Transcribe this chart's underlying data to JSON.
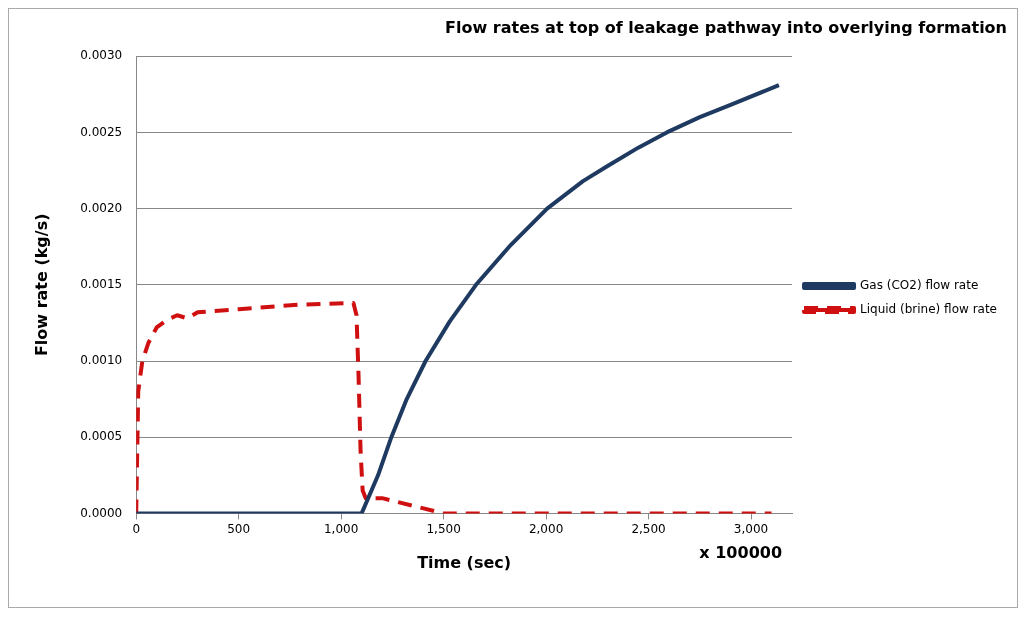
{
  "chart_data": {
    "type": "line",
    "title": "Flow rates at top of leakage pathway into overlying formation",
    "xlabel": "Time (sec)",
    "ylabel": "Flow rate (kg/s)",
    "annotations": [
      "x 100000"
    ],
    "xlim": [
      0,
      3200
    ],
    "xticks": [
      {
        "value": 0,
        "label": "0"
      },
      {
        "value": 500,
        "label": "500"
      },
      {
        "value": 1000,
        "label": "1,000"
      },
      {
        "value": 1500,
        "label": "1,500"
      },
      {
        "value": 2000,
        "label": "2,000"
      },
      {
        "value": 2500,
        "label": "2,500"
      },
      {
        "value": 3000,
        "label": "3,000"
      }
    ],
    "ylim": [
      0,
      0.003
    ],
    "yticks": [
      {
        "value": 0,
        "label": "0.0000"
      },
      {
        "value": 0.0005,
        "label": "0.0005"
      },
      {
        "value": 0.001,
        "label": "0.0010"
      },
      {
        "value": 0.0015,
        "label": "0.0015"
      },
      {
        "value": 0.002,
        "label": "0.0020"
      },
      {
        "value": 0.0025,
        "label": "0.0025"
      },
      {
        "value": 0.003,
        "label": "0.0030"
      }
    ],
    "grid": "y",
    "legend": "right",
    "marker": "none",
    "series": [
      {
        "name": "Gas (CO2) flow rate",
        "color": "#1f3a60",
        "line_style": "solid",
        "x": [
          0,
          500,
          1100,
          1180,
          1245,
          1320,
          1412,
          1530,
          1658,
          1820,
          2005,
          2180,
          2300,
          2450,
          2589,
          2750,
          2900,
          3136
        ],
        "values": [
          0,
          0,
          0,
          0.00025,
          0.0005,
          0.00075,
          0.001,
          0.00126,
          0.0015,
          0.00175,
          0.002,
          0.00218,
          0.00228,
          0.0024,
          0.0025,
          0.0026,
          0.00268,
          0.00281
        ]
      },
      {
        "name": "Liquid (brine) flow rate",
        "color": "#d01010",
        "line_style": "dashed",
        "x": [
          0,
          10,
          30,
          60,
          100,
          150,
          200,
          250,
          300,
          500,
          800,
          1060,
          1075,
          1085,
          1095,
          1105,
          1120,
          1200,
          1500,
          2000,
          2500,
          3100
        ],
        "values": [
          0,
          0.0008,
          0.001,
          0.00112,
          0.00122,
          0.00127,
          0.0013,
          0.00128,
          0.00132,
          0.00134,
          0.00137,
          0.00138,
          0.0013,
          0.0009,
          0.0004,
          0.00015,
          0.0001,
          0.0001,
          0,
          0,
          0,
          0
        ]
      }
    ]
  }
}
